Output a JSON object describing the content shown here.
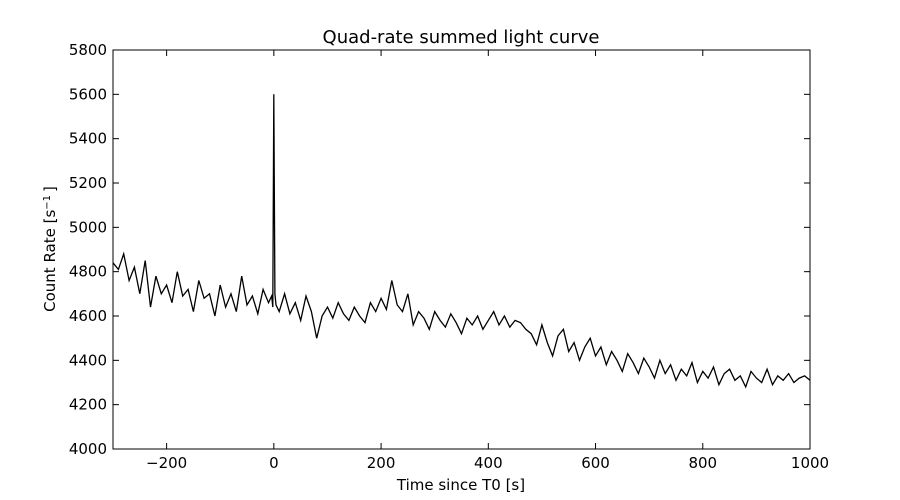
{
  "chart_data": {
    "type": "line",
    "title": "Quad-rate summed light curve",
    "xlabel": "Time since T0 [s]",
    "ylabel_main": "Count Rate [s",
    "ylabel_sup": "−1",
    "ylabel_end": "]",
    "xlim": [
      -300,
      1000
    ],
    "ylim": [
      4000,
      5800
    ],
    "xticks": [
      -200,
      0,
      200,
      400,
      600,
      800,
      1000
    ],
    "xtick_labels": [
      "−200",
      "0",
      "200",
      "400",
      "600",
      "800",
      "1000"
    ],
    "yticks": [
      4000,
      4200,
      4400,
      4600,
      4800,
      5000,
      5200,
      5400,
      5600,
      5800
    ],
    "ytick_labels": [
      "4000",
      "4200",
      "4400",
      "4600",
      "4800",
      "5000",
      "5200",
      "5400",
      "5600",
      "5800"
    ],
    "grid": false,
    "line_color": "#000000",
    "series": [
      {
        "x": [
          -300,
          -290,
          -280,
          -270,
          -260,
          -250,
          -240,
          -230,
          -220,
          -210,
          -200,
          -190,
          -180,
          -170,
          -160,
          -150,
          -140,
          -130,
          -120,
          -110,
          -100,
          -90,
          -80,
          -70,
          -60,
          -50,
          -40,
          -30,
          -20,
          -10,
          -4,
          -2,
          0,
          2,
          4,
          10,
          20,
          30,
          40,
          50,
          60,
          70,
          80,
          90,
          100,
          110,
          120,
          130,
          140,
          150,
          160,
          170,
          180,
          190,
          200,
          210,
          220,
          230,
          240,
          250,
          260,
          270,
          280,
          290,
          300,
          310,
          320,
          330,
          340,
          350,
          360,
          370,
          380,
          390,
          400,
          410,
          420,
          430,
          440,
          450,
          460,
          470,
          480,
          490,
          500,
          510,
          520,
          530,
          540,
          550,
          560,
          570,
          580,
          590,
          600,
          610,
          620,
          630,
          640,
          650,
          660,
          670,
          680,
          690,
          700,
          710,
          720,
          730,
          740,
          750,
          760,
          770,
          780,
          790,
          800,
          810,
          820,
          830,
          840,
          850,
          860,
          870,
          880,
          890,
          900,
          910,
          920,
          930,
          940,
          950,
          960,
          970,
          980,
          990,
          1000
        ],
        "y": [
          4840,
          4810,
          4880,
          4760,
          4820,
          4700,
          4850,
          4640,
          4780,
          4700,
          4740,
          4660,
          4800,
          4690,
          4720,
          4620,
          4760,
          4680,
          4700,
          4600,
          4740,
          4640,
          4700,
          4620,
          4780,
          4650,
          4690,
          4610,
          4720,
          4660,
          4690,
          4640,
          5600,
          4700,
          4650,
          4620,
          4700,
          4610,
          4660,
          4580,
          4690,
          4620,
          4500,
          4600,
          4640,
          4590,
          4660,
          4610,
          4580,
          4640,
          4600,
          4570,
          4660,
          4620,
          4680,
          4630,
          4760,
          4650,
          4620,
          4700,
          4560,
          4620,
          4590,
          4540,
          4620,
          4580,
          4550,
          4610,
          4570,
          4520,
          4590,
          4560,
          4600,
          4540,
          4580,
          4620,
          4560,
          4600,
          4550,
          4580,
          4570,
          4540,
          4520,
          4470,
          4560,
          4480,
          4420,
          4510,
          4540,
          4440,
          4480,
          4400,
          4460,
          4500,
          4420,
          4460,
          4380,
          4440,
          4400,
          4350,
          4430,
          4390,
          4340,
          4410,
          4370,
          4320,
          4400,
          4340,
          4380,
          4310,
          4360,
          4330,
          4390,
          4300,
          4350,
          4320,
          4370,
          4290,
          4340,
          4360,
          4310,
          4330,
          4280,
          4350,
          4320,
          4300,
          4360,
          4290,
          4330,
          4310,
          4340,
          4300,
          4320,
          4330,
          4310
        ]
      }
    ]
  }
}
